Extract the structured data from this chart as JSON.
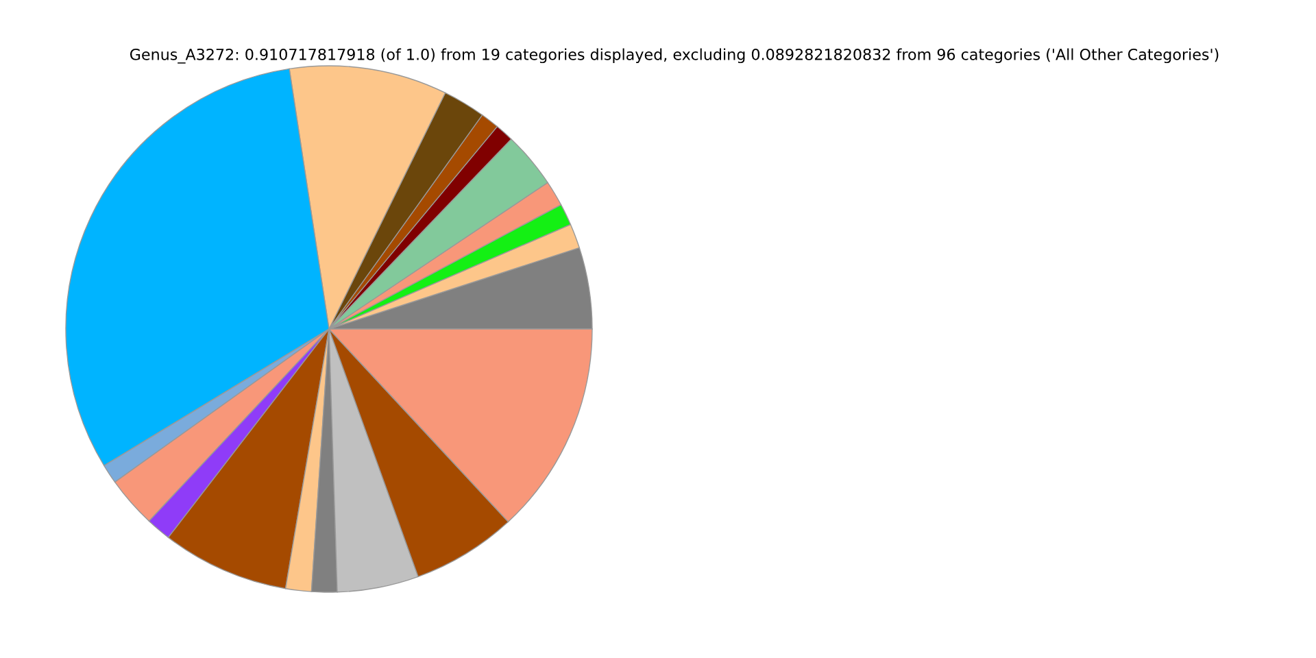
{
  "chart_data": {
    "type": "pie",
    "title": "Genus_A3272: 0.910717817918 (of 1.0) from 19 categories displayed, excluding 0.0892821820832 from 96 categories ('All Other Categories')",
    "categories": [
      null,
      null,
      null,
      null,
      null,
      null,
      null,
      null,
      null,
      null,
      null,
      null,
      null,
      null,
      null,
      null,
      null,
      null,
      null
    ],
    "values": [
      5.0,
      1.5,
      1.33,
      1.56,
      3.44,
      1.14,
      1.14,
      2.61,
      9.69,
      31.28,
      1.19,
      3.14,
      1.53,
      7.81,
      1.58,
      1.56,
      5.0,
      6.42,
      13.08
    ],
    "colors": [
      "#808080",
      "#fdc68a",
      "#14f014",
      "#f89779",
      "#82c99b",
      "#800000",
      "#a54a00",
      "#6b460b",
      "#fdc68a",
      "#00b4ff",
      "#7aabdc",
      "#f89779",
      "#8f3cf8",
      "#a54a00",
      "#fdc68a",
      "#808080",
      "#c0c0c0",
      "#a54a00",
      "#f89779"
    ]
  }
}
